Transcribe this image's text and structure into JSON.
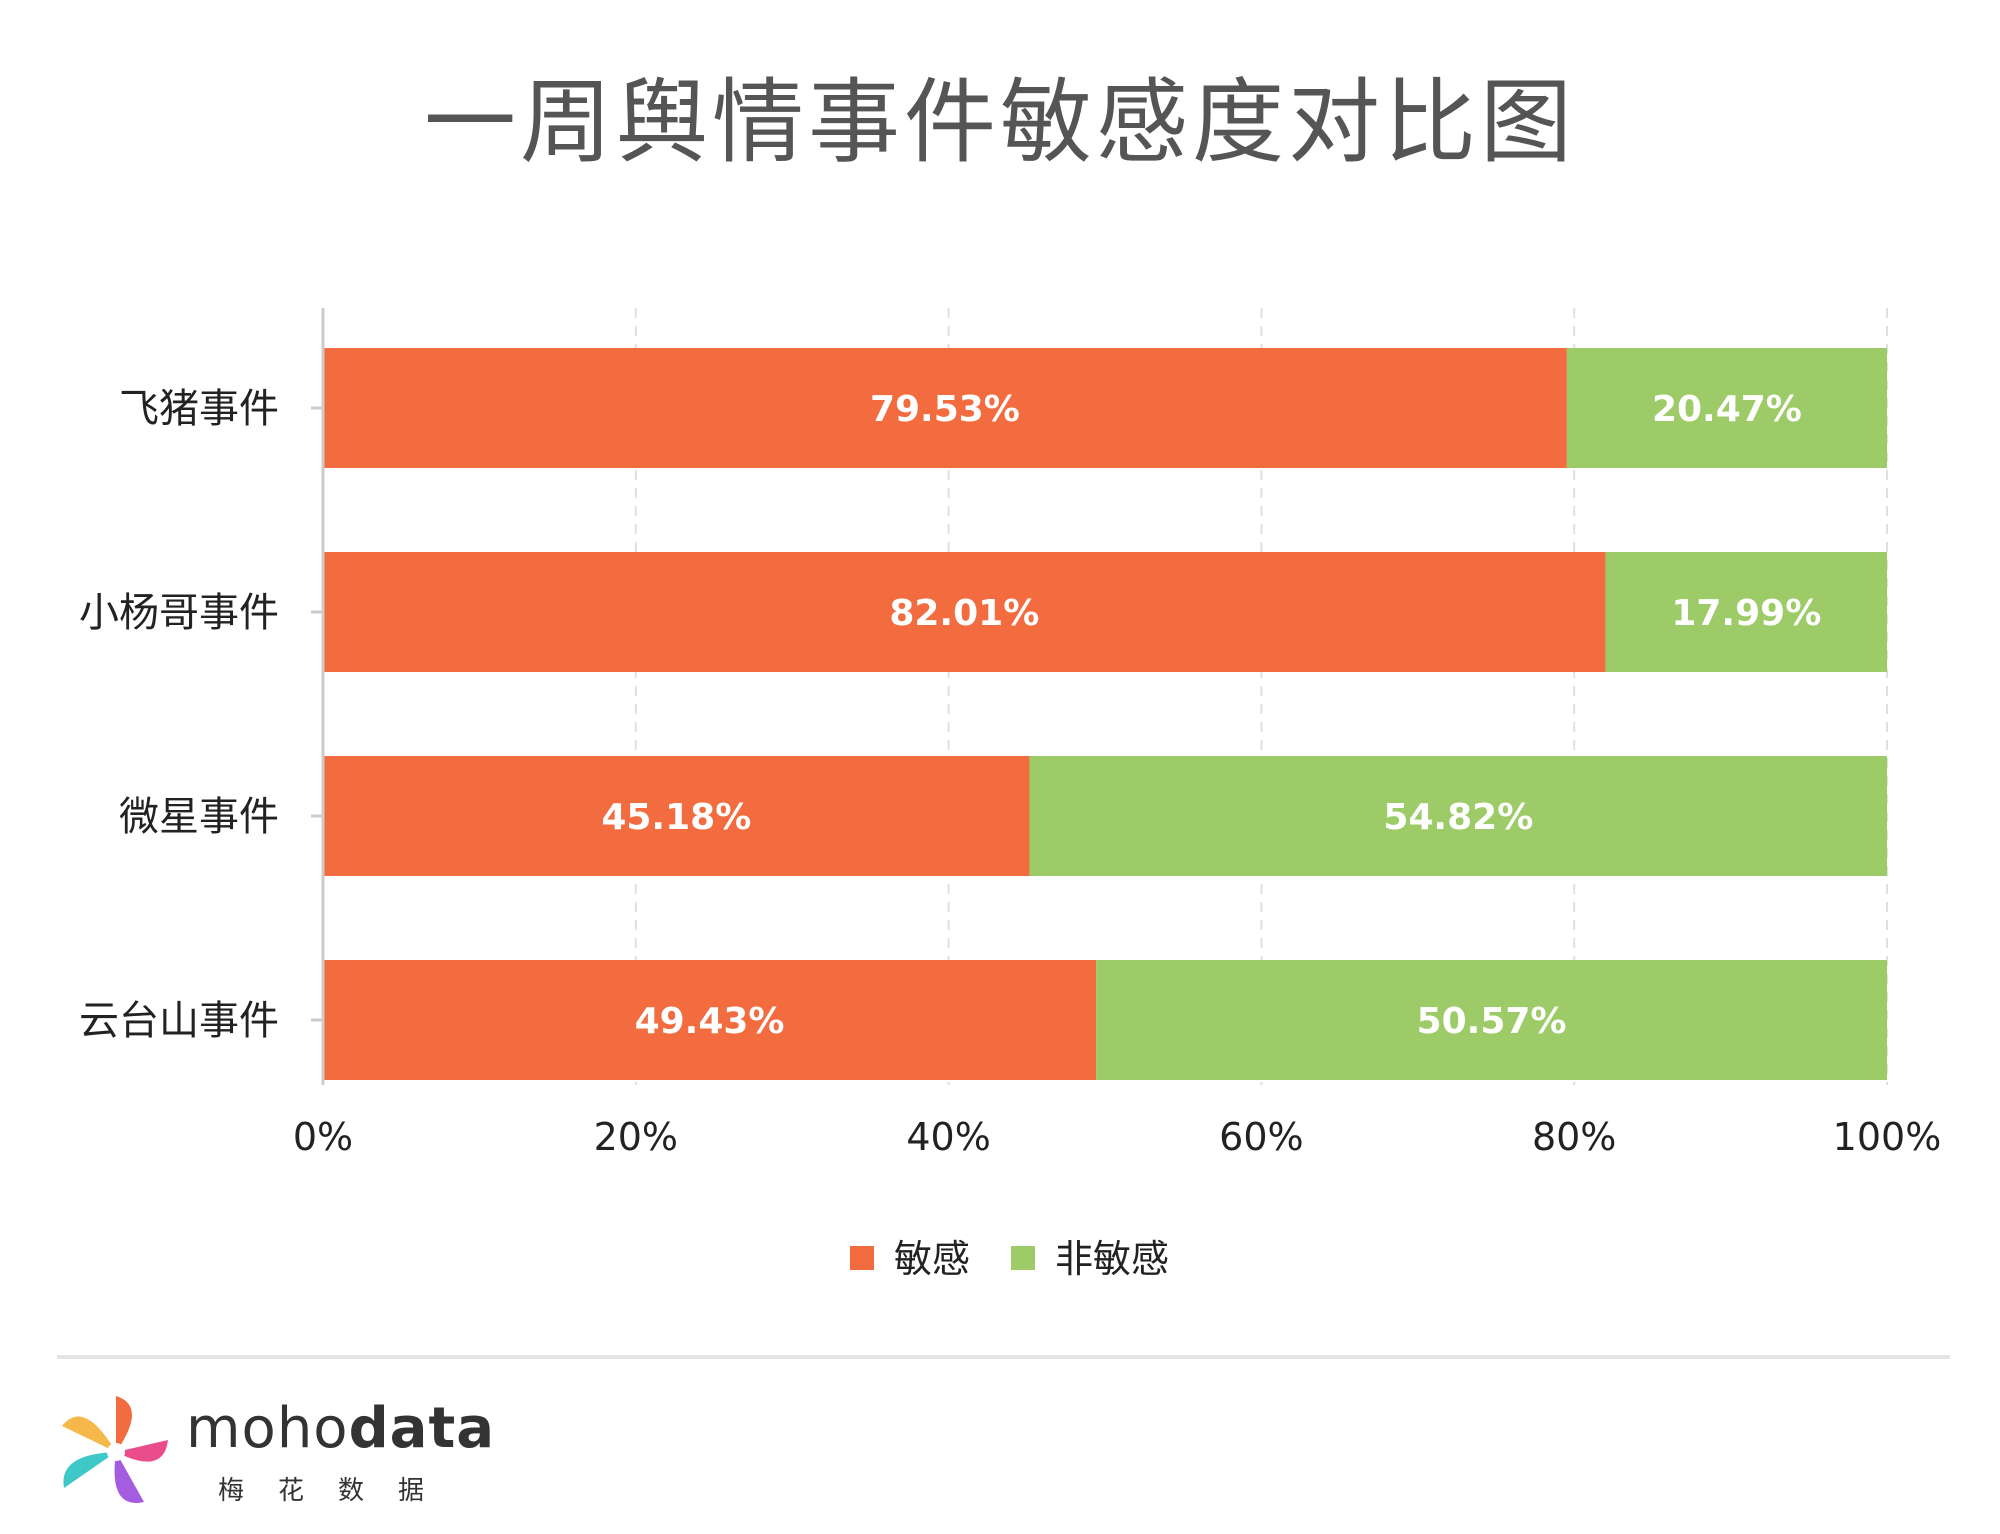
{
  "title": "一周舆情事件敏感度对比图",
  "colors": {
    "sensitive": "#F26C40",
    "non_sensitive": "#9CCB67",
    "axis": "#cccccc",
    "grid": "#e0e0e0"
  },
  "chart_data": {
    "type": "bar",
    "orientation": "horizontal",
    "stacked": "percent",
    "title": "一周舆情事件敏感度对比图",
    "categories": [
      "飞猪事件",
      "小杨哥事件",
      "微星事件",
      "云台山事件"
    ],
    "series": [
      {
        "name": "敏感",
        "values": [
          79.53,
          82.01,
          45.18,
          49.43
        ],
        "labels": [
          "79.53%",
          "82.01%",
          "45.18%",
          "49.43%"
        ]
      },
      {
        "name": "非敏感",
        "values": [
          20.47,
          17.99,
          54.82,
          50.57
        ],
        "labels": [
          "20.47%",
          "17.99%",
          "54.82%",
          "50.57%"
        ]
      }
    ],
    "xlim": [
      0,
      100
    ],
    "x_ticks": [
      "0%",
      "20%",
      "40%",
      "60%",
      "80%",
      "100%"
    ],
    "grid": true,
    "legend_position": "bottom"
  },
  "brand": {
    "name_light": "moho",
    "name_bold": "data",
    "cn": "梅花数据",
    "logo_icon": "pinwheel-icon"
  }
}
